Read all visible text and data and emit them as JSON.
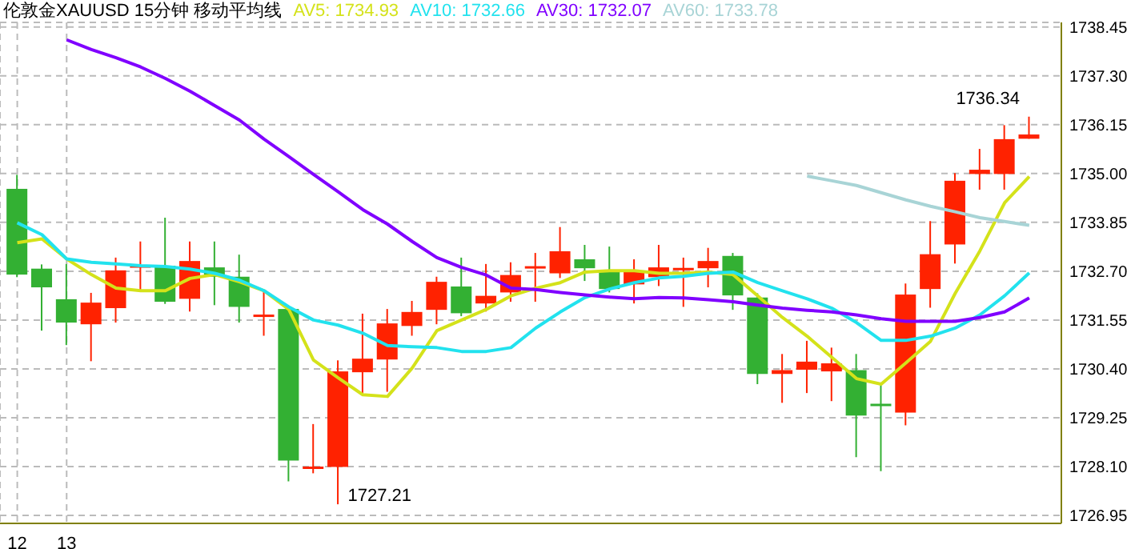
{
  "chart_data": {
    "type": "candlestick",
    "title": "伦敦金XAUUSD 15分钟 移动平均线",
    "categories": [
      "12",
      null,
      "13",
      null,
      null,
      null,
      null,
      null,
      null,
      null,
      null,
      null,
      null,
      null,
      null,
      null,
      null,
      null,
      null,
      null,
      null,
      null,
      null,
      null,
      null,
      null,
      null,
      null,
      null,
      null,
      null,
      null,
      null,
      null,
      null,
      null,
      null,
      null,
      null,
      null,
      null,
      null
    ],
    "ohlc": [
      [
        1734.64,
        1734.97,
        1732.56,
        1732.62
      ],
      [
        1732.76,
        1732.86,
        1731.3,
        1732.32
      ],
      [
        1732.04,
        1732.87,
        1730.96,
        1731.49
      ],
      [
        1731.45,
        1732.19,
        1730.58,
        1731.96
      ],
      [
        1731.83,
        1733.02,
        1731.49,
        1732.72
      ],
      [
        1732.81,
        1733.4,
        1732.24,
        1732.81
      ],
      [
        1732.83,
        1733.96,
        1731.93,
        1731.98
      ],
      [
        1732.05,
        1733.4,
        1731.75,
        1732.94
      ],
      [
        1732.79,
        1733.4,
        1731.9,
        1732.57
      ],
      [
        1732.57,
        1733.09,
        1731.49,
        1731.86
      ],
      [
        1731.65,
        1732.22,
        1731.18,
        1731.65
      ],
      [
        1731.81,
        1731.86,
        1727.75,
        1728.24
      ],
      [
        1728.07,
        1729.1,
        1727.94,
        1728.07
      ],
      [
        1728.09,
        1730.6,
        1727.21,
        1730.34
      ],
      [
        1730.32,
        1731.7,
        1729.77,
        1730.64
      ],
      [
        1730.62,
        1731.81,
        1729.86,
        1731.47
      ],
      [
        1731.41,
        1732.0,
        1731.18,
        1731.74
      ],
      [
        1731.79,
        1732.57,
        1731.45,
        1732.45
      ],
      [
        1732.34,
        1733.02,
        1731.64,
        1731.71
      ],
      [
        1731.94,
        1732.87,
        1731.75,
        1732.12
      ],
      [
        1732.2,
        1732.91,
        1731.98,
        1732.61
      ],
      [
        1732.79,
        1733.13,
        1731.98,
        1732.79
      ],
      [
        1732.65,
        1733.74,
        1732.54,
        1733.17
      ],
      [
        1732.98,
        1733.32,
        1732.47,
        1732.77
      ],
      [
        1732.68,
        1733.28,
        1732.2,
        1732.28
      ],
      [
        1732.39,
        1732.98,
        1731.94,
        1732.68
      ],
      [
        1732.56,
        1733.32,
        1732.35,
        1732.79
      ],
      [
        1732.75,
        1733.02,
        1731.86,
        1732.75
      ],
      [
        1732.77,
        1733.25,
        1732.32,
        1732.94
      ],
      [
        1733.06,
        1733.13,
        1731.79,
        1732.13
      ],
      [
        1732.08,
        1732.18,
        1730.04,
        1730.28
      ],
      [
        1730.28,
        1730.75,
        1729.6,
        1730.37
      ],
      [
        1730.38,
        1731.06,
        1729.83,
        1730.57
      ],
      [
        1730.34,
        1730.9,
        1729.64,
        1730.53
      ],
      [
        1730.37,
        1730.75,
        1728.32,
        1729.3
      ],
      [
        1729.55,
        1730.04,
        1727.99,
        1729.55
      ],
      [
        1729.37,
        1732.41,
        1729.07,
        1732.15
      ],
      [
        1732.28,
        1733.88,
        1731.84,
        1733.1
      ],
      [
        1733.33,
        1735.01,
        1732.88,
        1734.83
      ],
      [
        1734.99,
        1735.58,
        1734.62,
        1735.09
      ],
      [
        1734.99,
        1736.14,
        1734.62,
        1735.81
      ],
      [
        1735.82,
        1736.34,
        1735.82,
        1735.92
      ]
    ],
    "colors": [
      "#33b033",
      "#33b033",
      "#33b033",
      "#ff2200",
      "#ff2200",
      "#ff2200",
      "#33b033",
      "#ff2200",
      "#33b033",
      "#33b033",
      "#ff2200",
      "#33b033",
      "#ff2200",
      "#ff2200",
      "#ff2200",
      "#ff2200",
      "#ff2200",
      "#ff2200",
      "#33b033",
      "#ff2200",
      "#ff2200",
      "#ff2200",
      "#ff2200",
      "#33b033",
      "#33b033",
      "#ff2200",
      "#ff2200",
      "#ff2200",
      "#ff2200",
      "#33b033",
      "#33b033",
      "#ff2200",
      "#ff2200",
      "#ff2200",
      "#33b033",
      "#33b033",
      "#ff2200",
      "#ff2200",
      "#ff2200",
      "#ff2200",
      "#ff2200",
      "#ff2200"
    ],
    "series": [
      {
        "name": "AV5: 1734.93",
        "type": "line",
        "color": "#d4e21a",
        "values": [
          1733.37,
          1733.46,
          1732.99,
          1732.62,
          1732.3,
          1732.24,
          1732.24,
          1732.53,
          1732.62,
          1732.45,
          1732.24,
          1731.8,
          1730.61,
          1730.19,
          1729.79,
          1729.75,
          1730.42,
          1731.3,
          1731.55,
          1731.8,
          1732.12,
          1732.3,
          1732.43,
          1732.68,
          1732.71,
          1732.71,
          1732.65,
          1732.65,
          1732.68,
          1732.62,
          1732.12,
          1731.61,
          1731.17,
          1730.67,
          1730.17,
          1730.04,
          1730.54,
          1731.05,
          1732.18,
          1733.18,
          1734.31,
          1734.93
        ]
      },
      {
        "name": "AV10: 1732.66",
        "type": "line",
        "color": "#22e2ee",
        "values": [
          1733.84,
          1733.56,
          1732.99,
          1732.91,
          1732.87,
          1732.83,
          1732.81,
          1732.75,
          1732.65,
          1732.49,
          1732.24,
          1731.86,
          1731.55,
          1731.43,
          1731.24,
          1730.95,
          1730.92,
          1730.9,
          1730.81,
          1730.81,
          1730.9,
          1731.36,
          1731.74,
          1732.08,
          1732.28,
          1732.43,
          1732.54,
          1732.58,
          1732.65,
          1732.68,
          1732.43,
          1732.24,
          1732.05,
          1731.83,
          1731.49,
          1731.07,
          1731.07,
          1731.17,
          1731.36,
          1731.67,
          1732.12,
          1732.66
        ]
      },
      {
        "name": "AV30: 1732.07",
        "type": "line",
        "color": "#8000ff",
        "values": [
          null,
          null,
          1738.15,
          1737.92,
          1737.73,
          1737.51,
          1737.24,
          1736.94,
          1736.6,
          1736.26,
          1735.81,
          1735.4,
          1734.98,
          1734.57,
          1734.15,
          1733.81,
          1733.4,
          1733.02,
          1732.79,
          1732.61,
          1732.3,
          1732.27,
          1732.2,
          1732.14,
          1732.09,
          1732.05,
          1732.08,
          1732.07,
          1732.03,
          1731.98,
          1731.9,
          1731.83,
          1731.78,
          1731.74,
          1731.67,
          1731.58,
          1731.52,
          1731.52,
          1731.52,
          1731.61,
          1731.74,
          1732.07
        ]
      },
      {
        "name": "AV60: 1733.78",
        "type": "line",
        "color": "#a8d4d6",
        "values": [
          null,
          null,
          null,
          null,
          null,
          null,
          null,
          null,
          null,
          null,
          null,
          null,
          null,
          null,
          null,
          null,
          null,
          null,
          null,
          null,
          null,
          null,
          null,
          null,
          null,
          null,
          null,
          null,
          null,
          null,
          null,
          null,
          1734.94,
          1734.83,
          1734.72,
          1734.55,
          1734.38,
          1734.23,
          1734.1,
          1733.96,
          1733.87,
          1733.78
        ]
      }
    ],
    "ylim": [
      1726.76,
      1738.56
    ],
    "yticks": [
      {
        "value": 1726.95,
        "label": "1726.95"
      },
      {
        "value": 1728.1,
        "label": "1728.10"
      },
      {
        "value": 1729.25,
        "label": "1729.25"
      },
      {
        "value": 1730.4,
        "label": "1730.40"
      },
      {
        "value": 1731.55,
        "label": "1731.55"
      },
      {
        "value": 1732.7,
        "label": "1732.70"
      },
      {
        "value": 1733.85,
        "label": "1733.85"
      },
      {
        "value": 1735,
        "label": "1735.00"
      },
      {
        "value": 1736.15,
        "label": "1736.15"
      },
      {
        "value": 1737.3,
        "label": "1737.30"
      },
      {
        "value": 1738.45,
        "label": "1738.45"
      }
    ],
    "grid": true,
    "legend": "top left",
    "marker": "none",
    "line_style": "solid",
    "annotations": [
      "1727.21",
      "1736.34"
    ]
  }
}
